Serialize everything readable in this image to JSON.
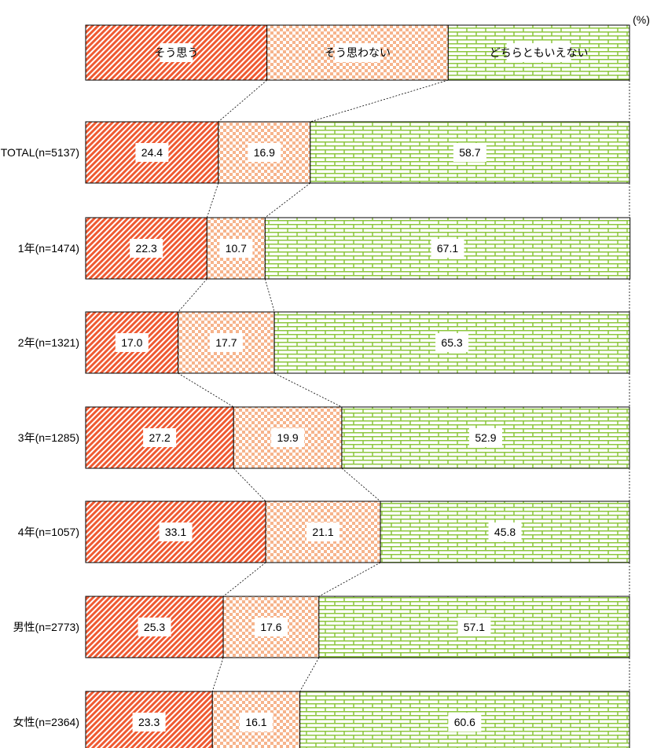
{
  "chart_data": {
    "type": "bar",
    "orientation": "horizontal",
    "stacked": "100%",
    "unit_label": "(%)",
    "legend_placement": "top",
    "categories": [
      "TOTAL(n=5137)",
      "1年(n=1474)",
      "2年(n=1321)",
      "3年(n=1285)",
      "4年(n=1057)",
      "男性(n=2773)",
      "女性(n=2364)"
    ],
    "series": [
      {
        "name": "そう思う",
        "values": [
          24.4,
          22.3,
          17.0,
          27.2,
          33.1,
          25.3,
          23.3
        ],
        "color": "#ef5a32",
        "pattern": "diagonal-stripes"
      },
      {
        "name": "そう思わない",
        "values": [
          16.9,
          10.7,
          17.7,
          19.9,
          21.1,
          17.6,
          16.1
        ],
        "color": "#f6b48c",
        "pattern": "checkerboard"
      },
      {
        "name": "どちらともいえない",
        "values": [
          58.7,
          67.1,
          65.3,
          52.9,
          45.8,
          57.1,
          60.6
        ],
        "color": "#8cc63e",
        "pattern": "brick"
      }
    ],
    "xlim": [
      0,
      100
    ],
    "grid": false,
    "connector_lines": true
  }
}
